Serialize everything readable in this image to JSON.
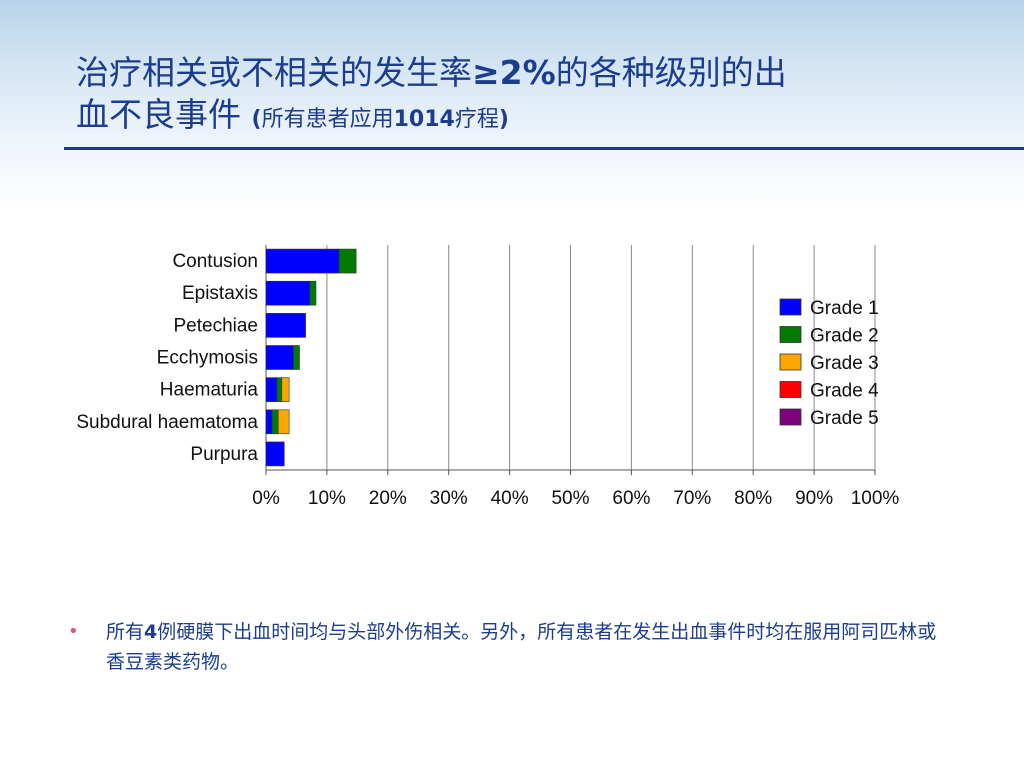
{
  "title": {
    "line1_part1": "治疗相关或不相关的发生率",
    "line1_highlight": "≥2%",
    "line1_part2": "的各种级别的出",
    "line2_main": "血不良事件 ",
    "line2_sub_open": "(",
    "line2_sub_text1": "所有患者应用",
    "line2_sub_num": "1014",
    "line2_sub_text2": "疗程",
    "line2_sub_close": ")"
  },
  "bullet": {
    "text_part1": "所有",
    "text_num": "4",
    "text_part2": "例硬膜下出血时间均与头部外伤相关。另外，所有患者在发生出血事件时均在服用阿司匹林或香豆素类药物。"
  },
  "chart_data": {
    "type": "bar",
    "orientation": "horizontal",
    "stacked": true,
    "categories": [
      "Contusion",
      "Epistaxis",
      "Petechiae",
      "Ecchymosis",
      "Haematuria",
      "Subdural haematoma",
      "Purpura"
    ],
    "series": [
      {
        "name": "Grade 1",
        "color": "#0000ff",
        "values": [
          12,
          7.2,
          6.5,
          4.5,
          1.8,
          1.0,
          3.0
        ]
      },
      {
        "name": "Grade 2",
        "color": "#007a00",
        "values": [
          2.8,
          1.0,
          0,
          1.0,
          0.8,
          1.0,
          0
        ]
      },
      {
        "name": "Grade 3",
        "color": "#ffa500",
        "values": [
          0,
          0,
          0,
          0,
          1.2,
          1.8,
          0
        ]
      },
      {
        "name": "Grade 4",
        "color": "#ff0000",
        "values": [
          0,
          0,
          0,
          0,
          0,
          0,
          0
        ]
      },
      {
        "name": "Grade 5",
        "color": "#7f007f",
        "values": [
          0,
          0,
          0,
          0,
          0,
          0,
          0
        ]
      }
    ],
    "xlim": [
      0,
      100
    ],
    "xticks": [
      "0%",
      "10%",
      "20%",
      "30%",
      "40%",
      "50%",
      "60%",
      "70%",
      "80%",
      "90%",
      "100%"
    ],
    "xlabel": "",
    "ylabel": "",
    "grid": true,
    "legend_position": "right"
  }
}
